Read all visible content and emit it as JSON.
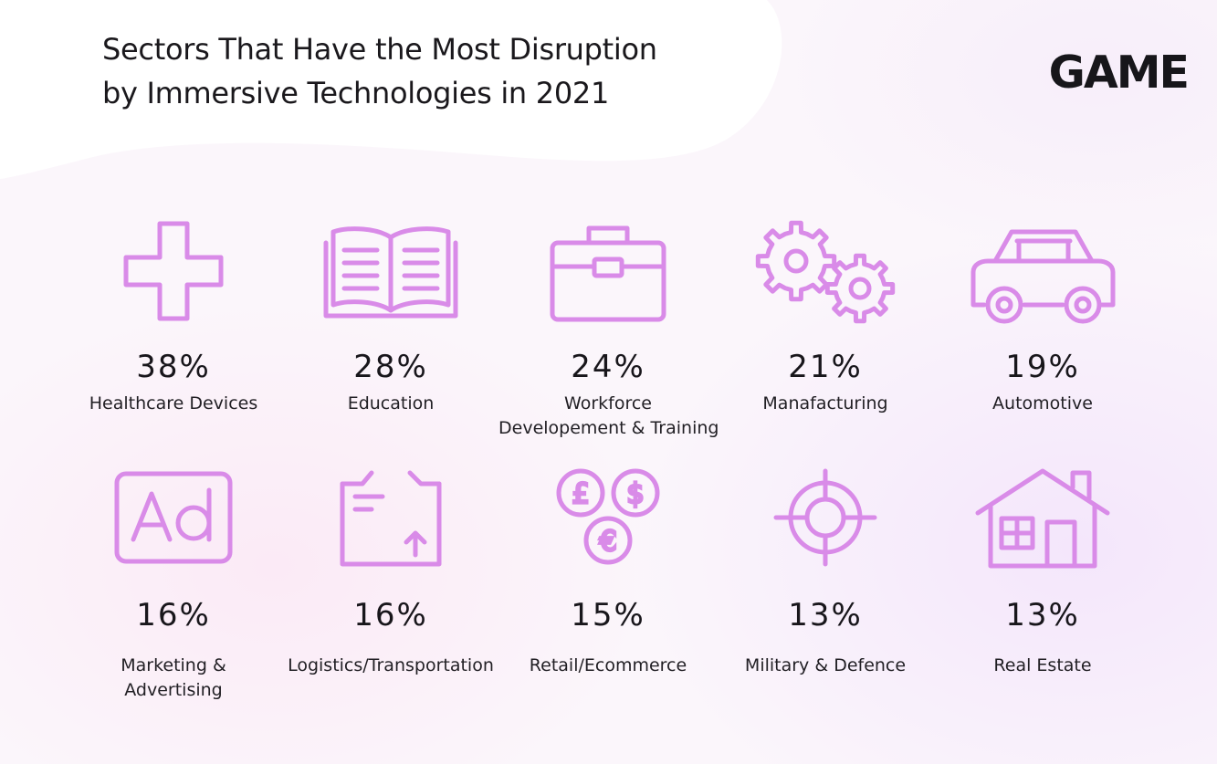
{
  "title": {
    "line1": "Sectors That Have the Most Disruption",
    "line2": "by Immersive Technologies in 2021"
  },
  "logo": "GAME",
  "colors": {
    "icon": "#d98be8",
    "text": "#1a181c"
  },
  "chart_data": {
    "type": "table",
    "title": "Sectors That Have the Most Disruption by Immersive Technologies in 2021",
    "unit": "%",
    "items": [
      {
        "value": 38,
        "value_label": "38%",
        "label_lines": [
          "Healthcare Devices"
        ],
        "icon": "plus-icon"
      },
      {
        "value": 28,
        "value_label": "28%",
        "label_lines": [
          "Education"
        ],
        "icon": "open-book-icon"
      },
      {
        "value": 24,
        "value_label": "24%",
        "label_lines": [
          "Workforce",
          "Developement & Training"
        ],
        "icon": "toolbox-icon"
      },
      {
        "value": 21,
        "value_label": "21%",
        "label_lines": [
          "Manafacturing"
        ],
        "icon": "gears-icon"
      },
      {
        "value": 19,
        "value_label": "19%",
        "label_lines": [
          "Automotive"
        ],
        "icon": "car-icon"
      },
      {
        "value": 16,
        "value_label": "16%",
        "label_lines": [
          "Marketing &",
          "Advertising"
        ],
        "icon": "ad-icon"
      },
      {
        "value": 16,
        "value_label": "16%",
        "label_lines": [
          "Logistics/Transportation"
        ],
        "icon": "parcel-icon"
      },
      {
        "value": 15,
        "value_label": "15%",
        "label_lines": [
          "Retail/Ecommerce"
        ],
        "icon": "currency-coins-icon"
      },
      {
        "value": 13,
        "value_label": "13%",
        "label_lines": [
          "Military & Defence"
        ],
        "icon": "crosshair-icon"
      },
      {
        "value": 13,
        "value_label": "13%",
        "label_lines": [
          "Real Estate"
        ],
        "icon": "house-icon"
      }
    ]
  }
}
